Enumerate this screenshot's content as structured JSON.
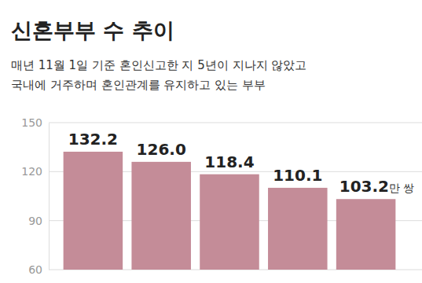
{
  "chart_data": {
    "type": "bar",
    "title": "신혼부부 수 추이",
    "subtitle": [
      "매년 11월 1일 기준 혼인신고한 지 5년이 지나지 않았고",
      "국내에 거주하며 혼인관계를 유지하고 있는 부부"
    ],
    "unit": "만 쌍",
    "categories": [
      null,
      null,
      null,
      null,
      null
    ],
    "values": [
      132.2,
      126.0,
      118.4,
      110.1,
      103.2
    ],
    "value_labels": [
      "132.2",
      "126.0",
      "118.4",
      "110.1",
      "103.2"
    ],
    "color": "#c48c98",
    "ylim": [
      60,
      150
    ],
    "yticks": [
      60,
      90,
      120,
      150
    ],
    "grid": true,
    "data_labels": true,
    "tick_labels": "y"
  }
}
